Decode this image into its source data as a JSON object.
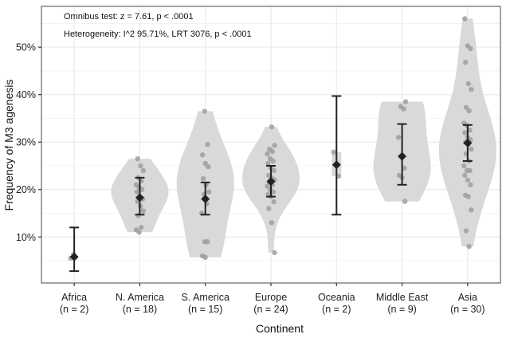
{
  "chart_data": {
    "type": "violin",
    "title": "",
    "annotations": [
      "Omnibus test: z = 7.61, p < .0001",
      "Heterogeneity: I^2 95.71%, LRT 3076, p < .0001"
    ],
    "xlabel": "Continent",
    "ylabel": "Frequency of M3 agenesis",
    "ylim": [
      0.3,
      58.6
    ],
    "yticks": [
      10,
      20,
      30,
      40,
      50
    ],
    "ytick_labels": [
      "10%",
      "20%",
      "30%",
      "40%",
      "50%"
    ],
    "grid": true,
    "categories": [
      {
        "name": "Africa",
        "n_label": "(n = 2)",
        "estimate": 5.8,
        "ci": [
          2.8,
          12.0
        ],
        "violin": false,
        "points": [
          5.5,
          6.3
        ]
      },
      {
        "name": "N. America",
        "n_label": "(n = 18)",
        "estimate": 18.3,
        "ci": [
          14.7,
          22.5
        ],
        "violin": true,
        "points": [
          26.5,
          25,
          24,
          22.5,
          21.8,
          21,
          20.5,
          20,
          19.5,
          18.5,
          18,
          17.5,
          16.5,
          15.5,
          14.5,
          12,
          11.5,
          11
        ]
      },
      {
        "name": "S. America",
        "n_label": "(n = 15)",
        "estimate": 18.0,
        "ci": [
          14.7,
          21.5
        ],
        "violin": true,
        "points": [
          36.5,
          29.5,
          27.3,
          25.5,
          24.8,
          22.3,
          21,
          19.5,
          19,
          17,
          15,
          9,
          9,
          6,
          5.7
        ]
      },
      {
        "name": "Europe",
        "n_label": "(n = 24)",
        "estimate": 21.7,
        "ci": [
          18.5,
          25.0
        ],
        "violin": true,
        "points": [
          33.2,
          29.3,
          28.5,
          28,
          27.5,
          26.5,
          26,
          25.5,
          24.5,
          24,
          23,
          22.5,
          22,
          21.5,
          21,
          20.7,
          20,
          19.5,
          19,
          18.5,
          17.4,
          16,
          13,
          6.7
        ]
      },
      {
        "name": "Oceania",
        "n_label": "(n = 2)",
        "estimate": 25.2,
        "ci": [
          14.7,
          39.7
        ],
        "violin": true,
        "points": [
          22.8,
          27.9
        ]
      },
      {
        "name": "Middle East",
        "n_label": "(n = 9)",
        "estimate": 27.0,
        "ci": [
          21.0,
          33.8
        ],
        "violin": true,
        "points": [
          38.5,
          37.5,
          37,
          31,
          27,
          24.5,
          23,
          22.5,
          17.5
        ]
      },
      {
        "name": "Asia",
        "n_label": "(n = 30)",
        "estimate": 29.8,
        "ci": [
          26.0,
          33.6
        ],
        "violin": true,
        "points": [
          56,
          50.3,
          49.7,
          46.8,
          42.3,
          41.1,
          37.3,
          36.6,
          34,
          33.5,
          32.5,
          32,
          31,
          30.5,
          30,
          29.5,
          28.5,
          27.5,
          26,
          25,
          24,
          24,
          23,
          22,
          21,
          18.8,
          18.5,
          15.7,
          11.3,
          8
        ]
      }
    ],
    "colors": {
      "violin": "#d9d9d9",
      "point": "#9a9a9a",
      "estimate": "#222222",
      "grid": "#e6e6e6",
      "frame": "#666666"
    }
  }
}
